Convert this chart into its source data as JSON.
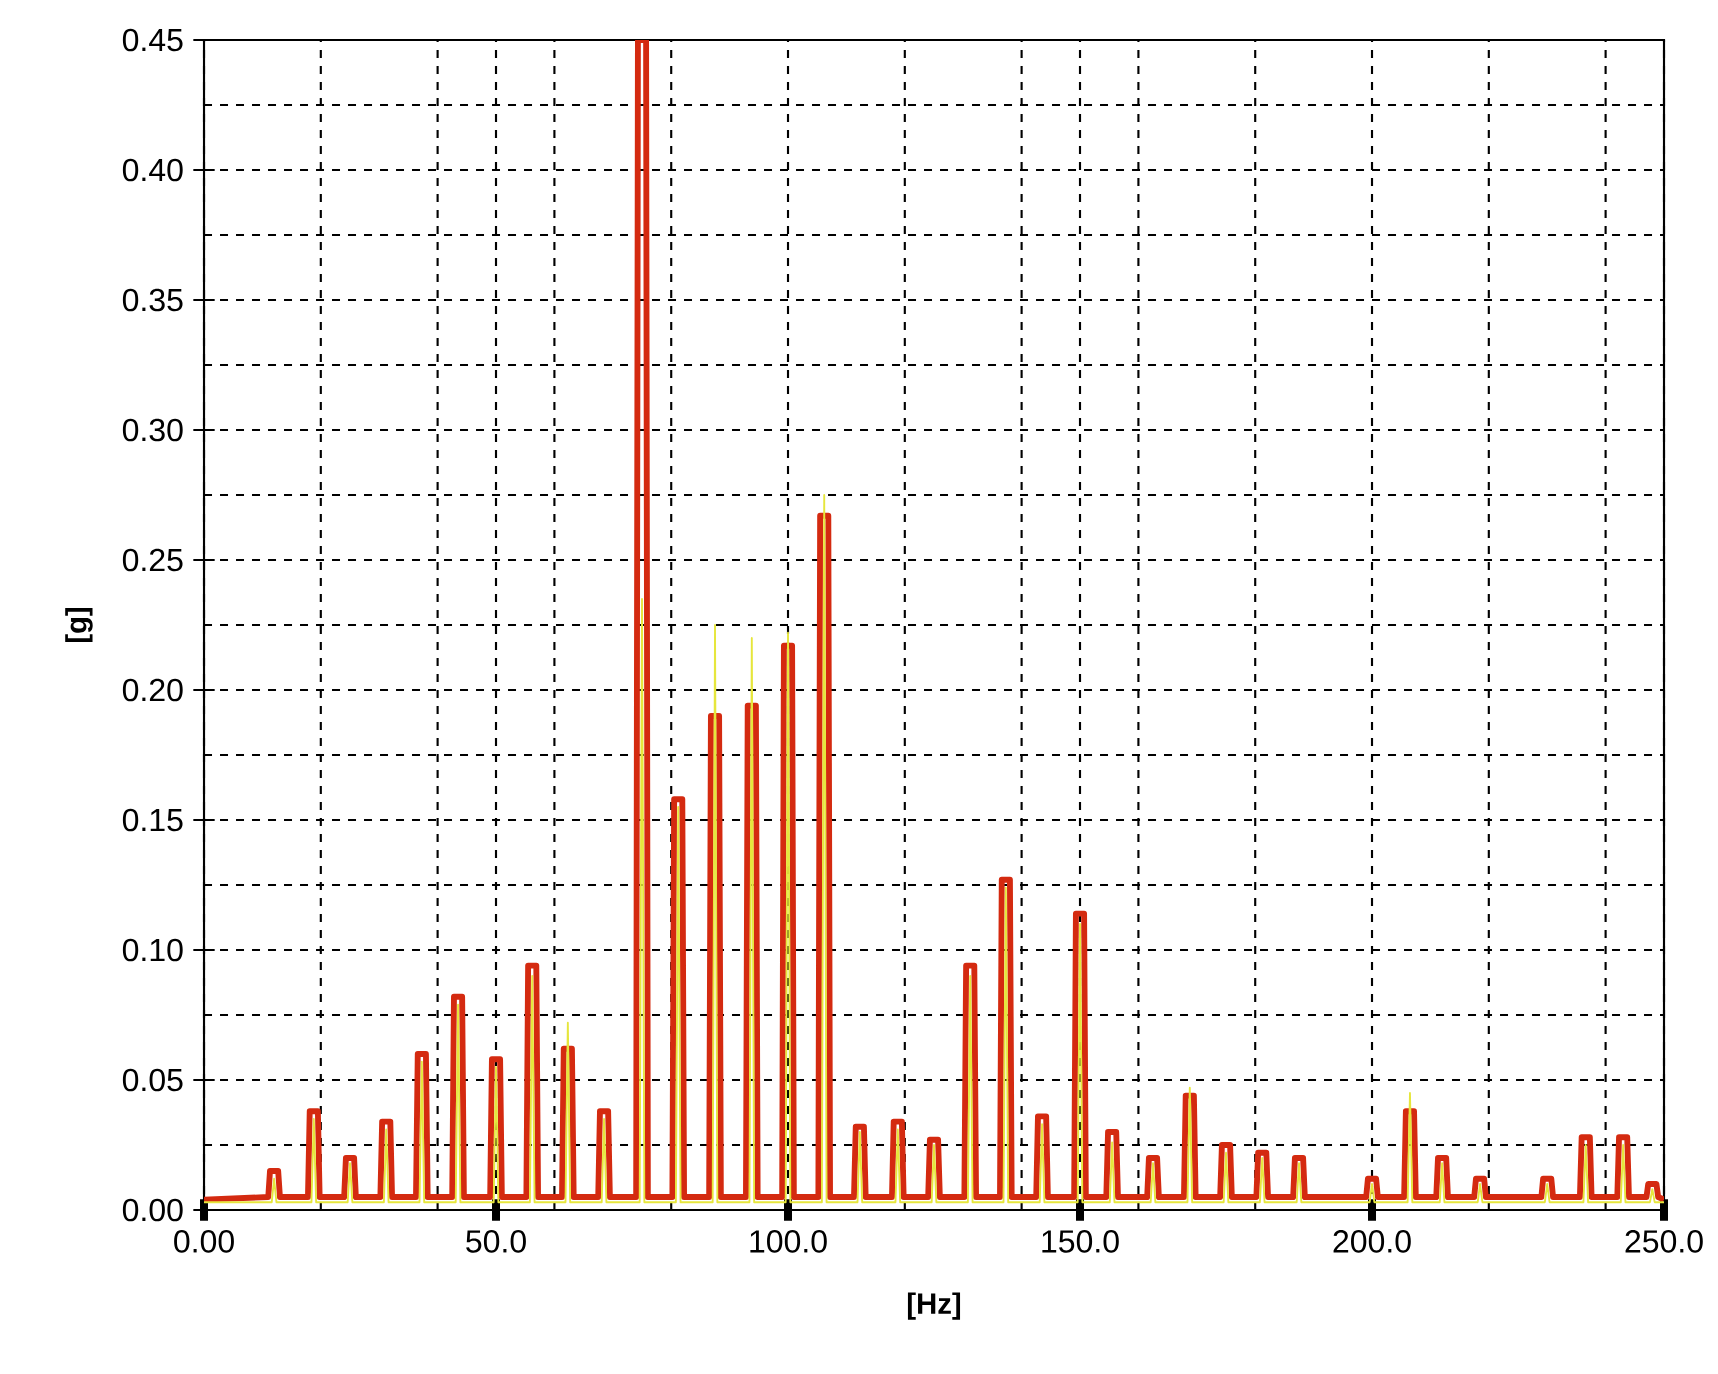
{
  "chart_data": {
    "type": "line",
    "xlabel": "[Hz]",
    "ylabel": "[g]",
    "xlim": [
      0,
      250
    ],
    "ylim": [
      0,
      0.45
    ],
    "xticks": [
      {
        "value": 0,
        "label": "0.00"
      },
      {
        "value": 20,
        "label": null
      },
      {
        "value": 40,
        "label": null
      },
      {
        "value": 50,
        "label": "50.0"
      },
      {
        "value": 60,
        "label": null
      },
      {
        "value": 80,
        "label": null
      },
      {
        "value": 100,
        "label": "100.0"
      },
      {
        "value": 120,
        "label": null
      },
      {
        "value": 140,
        "label": null
      },
      {
        "value": 150,
        "label": "150.0"
      },
      {
        "value": 160,
        "label": null
      },
      {
        "value": 180,
        "label": null
      },
      {
        "value": 200,
        "label": "200.0"
      },
      {
        "value": 220,
        "label": null
      },
      {
        "value": 240,
        "label": null
      },
      {
        "value": 250,
        "label": "250.0"
      }
    ],
    "yticks": [
      {
        "value": 0,
        "label": "0.00"
      },
      {
        "value": 0.025,
        "label": null
      },
      {
        "value": 0.05,
        "label": "0.05"
      },
      {
        "value": 0.075,
        "label": null
      },
      {
        "value": 0.1,
        "label": "0.10"
      },
      {
        "value": 0.125,
        "label": null
      },
      {
        "value": 0.15,
        "label": "0.15"
      },
      {
        "value": 0.175,
        "label": null
      },
      {
        "value": 0.2,
        "label": "0.20"
      },
      {
        "value": 0.225,
        "label": null
      },
      {
        "value": 0.25,
        "label": "0.25"
      },
      {
        "value": 0.275,
        "label": null
      },
      {
        "value": 0.3,
        "label": "0.30"
      },
      {
        "value": 0.325,
        "label": null
      },
      {
        "value": 0.35,
        "label": "0.35"
      },
      {
        "value": 0.375,
        "label": null
      },
      {
        "value": 0.4,
        "label": "0.40"
      },
      {
        "value": 0.425,
        "label": null
      },
      {
        "value": 0.45,
        "label": "0.45"
      }
    ],
    "grid": true,
    "marker": "none",
    "line_style": "solid",
    "series": [
      {
        "color": "#d42a10",
        "x": [
          0,
          11,
          11.3,
          12.7,
          13,
          17.8,
          18.1,
          19.5,
          19.8,
          24,
          24.3,
          25.7,
          26,
          30.2,
          30.5,
          31.9,
          32.2,
          36.3,
          36.6,
          38,
          38.3,
          42.5,
          42.8,
          44.2,
          44.5,
          49,
          49.3,
          50.7,
          51,
          55.2,
          55.5,
          56.9,
          57.2,
          61.3,
          61.6,
          63,
          63.3,
          67.5,
          67.8,
          69.2,
          69.5,
          74,
          74.3,
          75.7,
          76,
          80.2,
          80.5,
          81.9,
          82.2,
          86.5,
          86.8,
          88.2,
          88.5,
          92.8,
          93.1,
          94.5,
          94.8,
          99,
          99.3,
          100.7,
          101,
          105.2,
          105.5,
          106.9,
          107.2,
          111.3,
          111.6,
          113,
          113.3,
          117.8,
          118.1,
          119.5,
          119.8,
          124,
          124.3,
          125.7,
          126,
          130.2,
          130.5,
          131.9,
          132.2,
          136.3,
          136.6,
          138,
          138.3,
          142.5,
          142.8,
          144.2,
          144.5,
          149,
          149.3,
          150.7,
          151,
          154.5,
          154.8,
          156.2,
          156.5,
          161.5,
          161.8,
          163.2,
          163.5,
          167.8,
          168.1,
          169.5,
          169.8,
          174,
          174.3,
          175.7,
          176,
          180.2,
          180.5,
          181.9,
          182.2,
          186.5,
          186.8,
          188.2,
          188.5,
          199,
          199.3,
          200.7,
          201,
          205.5,
          205.8,
          207.2,
          207.5,
          211,
          211.3,
          212.7,
          213,
          217.5,
          217.8,
          219.2,
          219.5,
          229,
          229.3,
          230.7,
          231,
          235.6,
          235.9,
          237.3,
          237.6,
          242,
          242.3,
          243.7,
          244,
          247,
          247.3,
          248.7,
          249,
          250
        ],
        "values": [
          0.004,
          0.005,
          0.015,
          0.015,
          0.005,
          0.005,
          0.038,
          0.038,
          0.005,
          0.005,
          0.02,
          0.02,
          0.005,
          0.005,
          0.034,
          0.034,
          0.005,
          0.005,
          0.06,
          0.06,
          0.005,
          0.005,
          0.082,
          0.082,
          0.005,
          0.005,
          0.058,
          0.058,
          0.005,
          0.005,
          0.094,
          0.094,
          0.005,
          0.005,
          0.062,
          0.062,
          0.005,
          0.005,
          0.038,
          0.038,
          0.005,
          0.005,
          0.45,
          0.45,
          0.005,
          0.005,
          0.158,
          0.158,
          0.005,
          0.005,
          0.19,
          0.19,
          0.005,
          0.005,
          0.194,
          0.194,
          0.005,
          0.005,
          0.217,
          0.217,
          0.005,
          0.005,
          0.267,
          0.267,
          0.005,
          0.005,
          0.032,
          0.032,
          0.005,
          0.005,
          0.034,
          0.034,
          0.005,
          0.005,
          0.027,
          0.027,
          0.005,
          0.005,
          0.094,
          0.094,
          0.005,
          0.005,
          0.127,
          0.127,
          0.005,
          0.005,
          0.036,
          0.036,
          0.005,
          0.005,
          0.114,
          0.114,
          0.005,
          0.005,
          0.03,
          0.03,
          0.005,
          0.005,
          0.02,
          0.02,
          0.005,
          0.005,
          0.044,
          0.044,
          0.005,
          0.005,
          0.025,
          0.025,
          0.005,
          0.005,
          0.022,
          0.022,
          0.005,
          0.005,
          0.02,
          0.02,
          0.005,
          0.005,
          0.012,
          0.012,
          0.005,
          0.005,
          0.038,
          0.038,
          0.005,
          0.005,
          0.02,
          0.02,
          0.005,
          0.005,
          0.012,
          0.012,
          0.005,
          0.005,
          0.012,
          0.012,
          0.005,
          0.005,
          0.028,
          0.028,
          0.005,
          0.005,
          0.028,
          0.028,
          0.005,
          0.005,
          0.01,
          0.01,
          0.005,
          0.004
        ]
      },
      {
        "color": "#e6e63c",
        "x": [
          0,
          11.6,
          12,
          12.4,
          18.4,
          18.8,
          19.2,
          24.6,
          25,
          25.4,
          30.8,
          31.2,
          31.6,
          36.9,
          37.3,
          37.7,
          43.1,
          43.5,
          43.9,
          49.6,
          50,
          50.4,
          55.8,
          56.2,
          56.6,
          61.9,
          62.3,
          62.7,
          68.1,
          68.5,
          68.9,
          74.6,
          75,
          75.4,
          80.8,
          81.2,
          81.6,
          87.1,
          87.5,
          87.9,
          93.4,
          93.8,
          94.2,
          99.6,
          100,
          100.4,
          105.8,
          106.2,
          106.6,
          111.9,
          112.3,
          112.7,
          118.4,
          118.8,
          119.2,
          124.6,
          125,
          125.4,
          130.8,
          131.2,
          131.6,
          136.9,
          137.3,
          137.7,
          143.1,
          143.5,
          143.9,
          149.6,
          150,
          150.4,
          155.1,
          155.5,
          155.9,
          162.1,
          162.5,
          162.9,
          168.4,
          168.8,
          169.2,
          174.6,
          175,
          175.4,
          180.8,
          181.2,
          181.6,
          187.1,
          187.5,
          187.9,
          199.6,
          200,
          200.4,
          206.1,
          206.5,
          206.9,
          211.6,
          212,
          212.4,
          218.1,
          218.5,
          218.9,
          229.6,
          230,
          230.4,
          236.2,
          236.6,
          237,
          242.6,
          243,
          243.4,
          247.6,
          248,
          248.4,
          250
        ],
        "values": [
          0.003,
          0.003,
          0.012,
          0.003,
          0.003,
          0.035,
          0.003,
          0.003,
          0.018,
          0.003,
          0.003,
          0.031,
          0.003,
          0.003,
          0.057,
          0.003,
          0.003,
          0.079,
          0.003,
          0.003,
          0.055,
          0.003,
          0.003,
          0.09,
          0.003,
          0.003,
          0.072,
          0.003,
          0.003,
          0.035,
          0.003,
          0.003,
          0.235,
          0.003,
          0.003,
          0.155,
          0.003,
          0.003,
          0.225,
          0.003,
          0.003,
          0.22,
          0.003,
          0.003,
          0.222,
          0.003,
          0.003,
          0.275,
          0.003,
          0.003,
          0.03,
          0.003,
          0.003,
          0.031,
          0.003,
          0.003,
          0.025,
          0.003,
          0.003,
          0.09,
          0.003,
          0.003,
          0.124,
          0.003,
          0.003,
          0.033,
          0.003,
          0.003,
          0.11,
          0.003,
          0.003,
          0.026,
          0.003,
          0.003,
          0.018,
          0.003,
          0.003,
          0.047,
          0.003,
          0.003,
          0.022,
          0.003,
          0.003,
          0.02,
          0.003,
          0.003,
          0.018,
          0.003,
          0.003,
          0.01,
          0.003,
          0.003,
          0.045,
          0.003,
          0.003,
          0.018,
          0.003,
          0.003,
          0.01,
          0.003,
          0.003,
          0.01,
          0.003,
          0.003,
          0.025,
          0.003,
          0.003,
          0.025,
          0.003,
          0.003,
          0.008,
          0.003,
          0.003
        ]
      }
    ]
  }
}
